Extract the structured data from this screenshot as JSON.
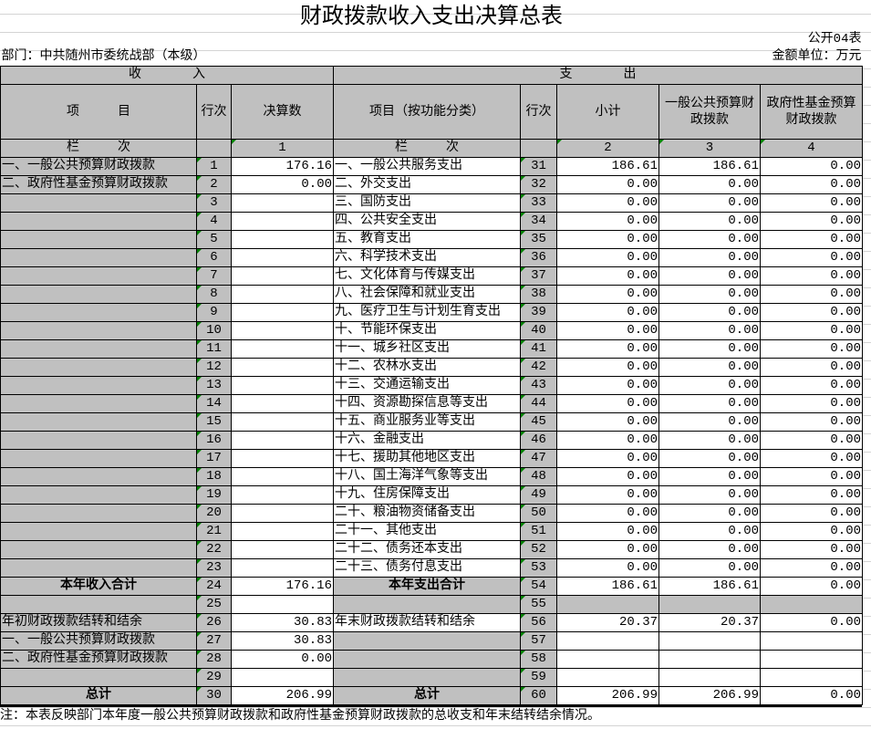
{
  "title": "财政拨款收入支出决算总表",
  "form_no": "公开04表",
  "department": "部门：中共随州市委统战部（本级）",
  "unit": "金额单位：万元",
  "income_header": "收　　　　入",
  "expense_header": "支　　　　出",
  "columns": {
    "item": "项　　　目",
    "row_no": "行次",
    "amount": "决算数",
    "exp_item": "项目（按功能分类）",
    "exp_row_no": "行次",
    "subtotal": "小计",
    "general": "一般公共预算财政拨款",
    "fund": "政府性基金预算财政拨款"
  },
  "column_index": {
    "label": "栏　　　次",
    "c1": "1",
    "label2": "栏　　　次",
    "c2": "2",
    "c3": "3",
    "c4": "4"
  },
  "rows": [
    {
      "in_item": "一、一般公共预算财政拨款",
      "in_no": "1",
      "in_amt": "176.16",
      "ex_item": "一、一般公共服务支出",
      "ex_no": "31",
      "sub": "186.61",
      "gen": "186.61",
      "fund": "0.00"
    },
    {
      "in_item": "二、政府性基金预算财政拨款",
      "in_no": "2",
      "in_amt": "0.00",
      "ex_item": "二、外交支出",
      "ex_no": "32",
      "sub": "0.00",
      "gen": "0.00",
      "fund": "0.00"
    },
    {
      "in_item": "",
      "in_no": "3",
      "in_amt": "",
      "ex_item": "三、国防支出",
      "ex_no": "33",
      "sub": "0.00",
      "gen": "0.00",
      "fund": "0.00"
    },
    {
      "in_item": "",
      "in_no": "4",
      "in_amt": "",
      "ex_item": "四、公共安全支出",
      "ex_no": "34",
      "sub": "0.00",
      "gen": "0.00",
      "fund": "0.00"
    },
    {
      "in_item": "",
      "in_no": "5",
      "in_amt": "",
      "ex_item": "五、教育支出",
      "ex_no": "35",
      "sub": "0.00",
      "gen": "0.00",
      "fund": "0.00"
    },
    {
      "in_item": "",
      "in_no": "6",
      "in_amt": "",
      "ex_item": "六、科学技术支出",
      "ex_no": "36",
      "sub": "0.00",
      "gen": "0.00",
      "fund": "0.00"
    },
    {
      "in_item": "",
      "in_no": "7",
      "in_amt": "",
      "ex_item": "七、文化体育与传媒支出",
      "ex_no": "37",
      "sub": "0.00",
      "gen": "0.00",
      "fund": "0.00"
    },
    {
      "in_item": "",
      "in_no": "8",
      "in_amt": "",
      "ex_item": "八、社会保障和就业支出",
      "ex_no": "38",
      "sub": "0.00",
      "gen": "0.00",
      "fund": "0.00"
    },
    {
      "in_item": "",
      "in_no": "9",
      "in_amt": "",
      "ex_item": "九、医疗卫生与计划生育支出",
      "ex_no": "39",
      "sub": "0.00",
      "gen": "0.00",
      "fund": "0.00"
    },
    {
      "in_item": "",
      "in_no": "10",
      "in_amt": "",
      "ex_item": "十、节能环保支出",
      "ex_no": "40",
      "sub": "0.00",
      "gen": "0.00",
      "fund": "0.00"
    },
    {
      "in_item": "",
      "in_no": "11",
      "in_amt": "",
      "ex_item": "十一、城乡社区支出",
      "ex_no": "41",
      "sub": "0.00",
      "gen": "0.00",
      "fund": "0.00"
    },
    {
      "in_item": "",
      "in_no": "12",
      "in_amt": "",
      "ex_item": "十二、农林水支出",
      "ex_no": "42",
      "sub": "0.00",
      "gen": "0.00",
      "fund": "0.00"
    },
    {
      "in_item": "",
      "in_no": "13",
      "in_amt": "",
      "ex_item": "十三、交通运输支出",
      "ex_no": "43",
      "sub": "0.00",
      "gen": "0.00",
      "fund": "0.00"
    },
    {
      "in_item": "",
      "in_no": "14",
      "in_amt": "",
      "ex_item": "十四、资源勘探信息等支出",
      "ex_no": "44",
      "sub": "0.00",
      "gen": "0.00",
      "fund": "0.00"
    },
    {
      "in_item": "",
      "in_no": "15",
      "in_amt": "",
      "ex_item": "十五、商业服务业等支出",
      "ex_no": "45",
      "sub": "0.00",
      "gen": "0.00",
      "fund": "0.00"
    },
    {
      "in_item": "",
      "in_no": "16",
      "in_amt": "",
      "ex_item": "十六、金融支出",
      "ex_no": "46",
      "sub": "0.00",
      "gen": "0.00",
      "fund": "0.00"
    },
    {
      "in_item": "",
      "in_no": "17",
      "in_amt": "",
      "ex_item": "十七、援助其他地区支出",
      "ex_no": "47",
      "sub": "0.00",
      "gen": "0.00",
      "fund": "0.00"
    },
    {
      "in_item": "",
      "in_no": "18",
      "in_amt": "",
      "ex_item": "十八、国土海洋气象等支出",
      "ex_no": "48",
      "sub": "0.00",
      "gen": "0.00",
      "fund": "0.00"
    },
    {
      "in_item": "",
      "in_no": "19",
      "in_amt": "",
      "ex_item": "十九、住房保障支出",
      "ex_no": "49",
      "sub": "0.00",
      "gen": "0.00",
      "fund": "0.00"
    },
    {
      "in_item": "",
      "in_no": "20",
      "in_amt": "",
      "ex_item": "二十、粮油物资储备支出",
      "ex_no": "50",
      "sub": "0.00",
      "gen": "0.00",
      "fund": "0.00"
    },
    {
      "in_item": "",
      "in_no": "21",
      "in_amt": "",
      "ex_item": "二十一、其他支出",
      "ex_no": "51",
      "sub": "0.00",
      "gen": "0.00",
      "fund": "0.00"
    },
    {
      "in_item": "",
      "in_no": "22",
      "in_amt": "",
      "ex_item": "二十二、债务还本支出",
      "ex_no": "52",
      "sub": "0.00",
      "gen": "0.00",
      "fund": "0.00"
    },
    {
      "in_item": "",
      "in_no": "23",
      "in_amt": "",
      "ex_item": "二十三、债务付息支出",
      "ex_no": "53",
      "sub": "0.00",
      "gen": "0.00",
      "fund": "0.00"
    },
    {
      "in_item": "本年收入合计",
      "in_no": "24",
      "in_amt": "176.16",
      "ex_item": "本年支出合计",
      "ex_no": "54",
      "sub": "186.61",
      "gen": "186.61",
      "fund": "0.00",
      "bold": true
    },
    {
      "in_item": "",
      "in_no": "25",
      "in_amt": "",
      "ex_item": "",
      "ex_no": "55",
      "sub": "",
      "gen": "",
      "fund": ""
    },
    {
      "in_item": "年初财政拨款结转和结余",
      "in_no": "26",
      "in_amt": "30.83",
      "ex_item": "年末财政拨款结转和结余",
      "ex_no": "56",
      "sub": "20.37",
      "gen": "20.37",
      "fund": "0.00"
    },
    {
      "in_item": "一、一般公共预算财政拨款",
      "in_no": "27",
      "in_amt": "30.83",
      "ex_item": "",
      "ex_no": "57",
      "sub": "",
      "gen": "",
      "fund": ""
    },
    {
      "in_item": "二、政府性基金预算财政拨款",
      "in_no": "28",
      "in_amt": "0.00",
      "ex_item": "",
      "ex_no": "58",
      "sub": "",
      "gen": "",
      "fund": ""
    },
    {
      "in_item": "",
      "in_no": "29",
      "in_amt": "",
      "ex_item": "",
      "ex_no": "59",
      "sub": "",
      "gen": "",
      "fund": ""
    },
    {
      "in_item": "总计",
      "in_no": "30",
      "in_amt": "206.99",
      "ex_item": "总计",
      "ex_no": "60",
      "sub": "206.99",
      "gen": "206.99",
      "fund": "0.00",
      "bold": true
    }
  ],
  "note": "注：本表反映部门本年度一般公共预算财政拨款和政府性基金预算财政拨款的总收支和年末结转结余情况。",
  "colors": {
    "header_gray": "#c0c0c0",
    "marker_green": "#008000"
  }
}
